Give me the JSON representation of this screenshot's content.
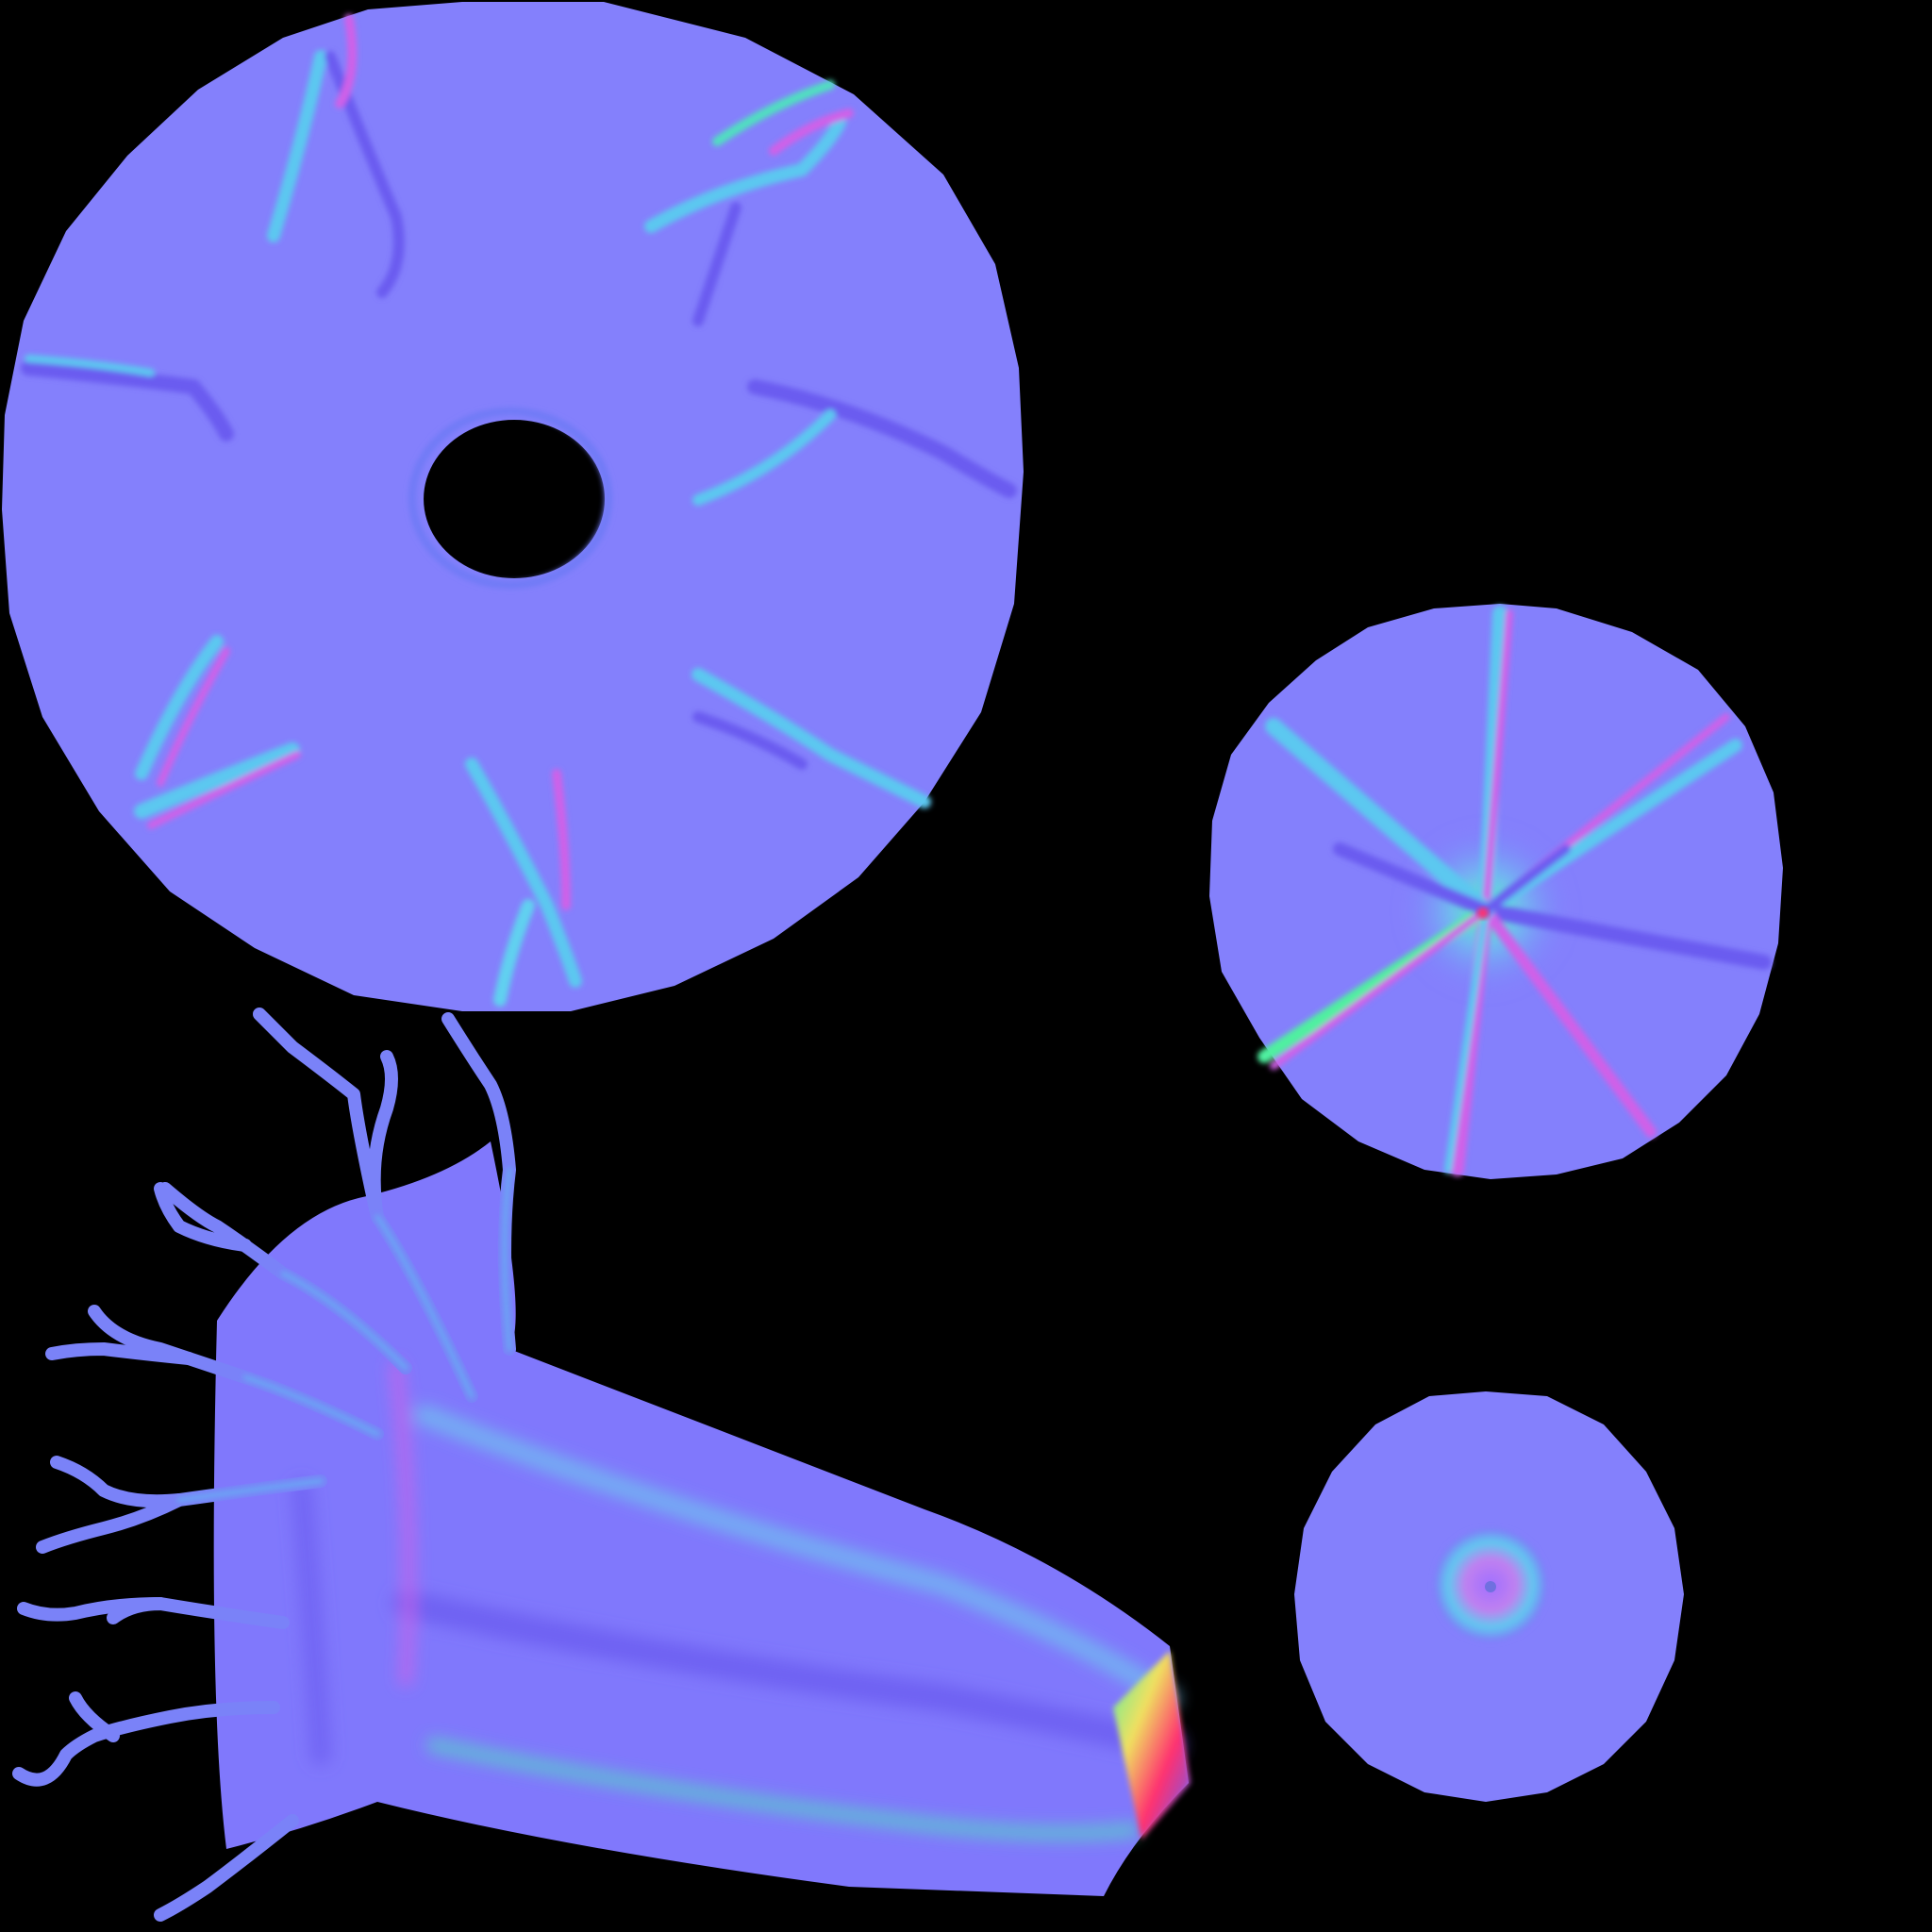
{
  "texture": {
    "kind": "normal-map-uv-atlas",
    "background_color": "#000000",
    "base_normal_color": "#8080ff",
    "highlight_colors": {
      "magenta": "#d060e8",
      "cyan": "#40d0f0",
      "violet": "#6a5cf0",
      "green": "#50f0a0",
      "red": "#ff3070",
      "yellow": "#f0e060"
    },
    "islands": [
      {
        "name": "large-disc-with-hole"
      },
      {
        "name": "medium-disc-with-veins"
      },
      {
        "name": "small-disc-with-dimple"
      },
      {
        "name": "tentacle-body-with-branches"
      }
    ]
  }
}
